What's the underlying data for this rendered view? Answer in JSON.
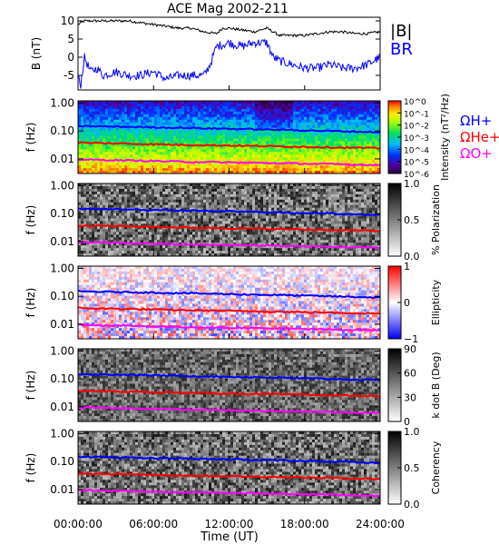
{
  "chart_data": {
    "type": "line",
    "title": "ACE Mag 2002-211",
    "time_axis": {
      "label": "Time (UT)",
      "range_hours": [
        0,
        24
      ],
      "tick_labels": [
        "00:00:00",
        "06:00:00",
        "12:00:00",
        "18:00:00",
        "24:00:00"
      ]
    },
    "panels": [
      {
        "id": "b",
        "type": "line",
        "ylabel": "B (nT)",
        "ylim": [
          -9,
          11
        ],
        "y_ticks": [
          10,
          5,
          0,
          -5
        ],
        "series": [
          {
            "name": "|B|",
            "color": "#000000",
            "x": [
              0,
              0.5,
              1,
              2,
              3,
              4,
              5,
              6,
              7,
              8,
              9,
              10,
              11,
              11.5,
              12,
              13,
              14,
              15,
              15.5,
              16,
              17,
              18,
              19,
              20,
              21,
              22,
              23,
              24
            ],
            "values": [
              9,
              10,
              10,
              10,
              10,
              10,
              9.5,
              9,
              8.5,
              8,
              8,
              7,
              6.5,
              8,
              8,
              7.5,
              7,
              8,
              7,
              6,
              6,
              6,
              6.5,
              7,
              7,
              6.5,
              6.5,
              7
            ]
          },
          {
            "name": "BR",
            "color": "#0000ff",
            "x": [
              0,
              0.2,
              0.5,
              1,
              1.5,
              2,
              3,
              4,
              5,
              6,
              7,
              8,
              9,
              10,
              10.5,
              11,
              12,
              13,
              14,
              15,
              15.5,
              16,
              17,
              18,
              19,
              20,
              21,
              22,
              23,
              24
            ],
            "values": [
              -5,
              -8,
              0,
              -4,
              -3,
              -5,
              -4,
              -5,
              -5,
              -4,
              -6,
              -5,
              -5,
              -5,
              -2,
              3,
              4,
              3,
              4,
              4,
              0,
              -1,
              -2,
              -3,
              -3,
              -2,
              -3,
              -3,
              -2,
              0
            ]
          }
        ]
      },
      {
        "id": "intensity",
        "type": "heatmap",
        "ylabel": "f (Hz)",
        "yscale": "log",
        "ylim": [
          0.003,
          1.2
        ],
        "y_tick_labels": [
          "1.00",
          "0.10",
          "0.01"
        ],
        "colorbar": {
          "label": "Intensity (nT²/Hz)",
          "scale": "log",
          "range": [
            1e-06,
            1
          ],
          "tick_labels": [
            "10^0",
            "10^-1",
            "10^-2",
            "10^-3",
            "10^-4",
            "10^-5",
            "10^-6"
          ]
        },
        "gyrofrequency_lines": [
          {
            "name": "ΩH+",
            "color": "#0000ff",
            "values": [
              0.15,
              0.14,
              0.13,
              0.12,
              0.11,
              0.1,
              0.09
            ]
          },
          {
            "name": "ΩHe+",
            "color": "#ff0000",
            "values": [
              0.038,
              0.035,
              0.032,
              0.03,
              0.028,
              0.026,
              0.024
            ]
          },
          {
            "name": "ΩO+",
            "color": "#ff00ff",
            "values": [
              0.0095,
              0.0088,
              0.008,
              0.0075,
              0.007,
              0.0065,
              0.006
            ]
          }
        ]
      },
      {
        "id": "polarization",
        "type": "heatmap",
        "ylabel": "f (Hz)",
        "yscale": "log",
        "ylim": [
          0.003,
          1.2
        ],
        "y_tick_labels": [
          "1.00",
          "0.10",
          "0.01"
        ],
        "colorbar": {
          "label": "% Polarization",
          "range": [
            0,
            1
          ],
          "tick_labels": [
            "1.0",
            "0.5",
            "0.0"
          ]
        }
      },
      {
        "id": "ellipticity",
        "type": "heatmap",
        "ylabel": "f (Hz)",
        "yscale": "log",
        "ylim": [
          0.003,
          1.2
        ],
        "y_tick_labels": [
          "1.00",
          "0.10",
          "0.01"
        ],
        "colorbar": {
          "label": "Ellipticity",
          "range": [
            -1,
            1
          ],
          "tick_labels": [
            "1",
            "0",
            "−1"
          ]
        }
      },
      {
        "id": "kdotb",
        "type": "heatmap",
        "ylabel": "f (Hz)",
        "yscale": "log",
        "ylim": [
          0.003,
          1.2
        ],
        "y_tick_labels": [
          "1.00",
          "0.10",
          "0.01"
        ],
        "colorbar": {
          "label": "k dot B (Deg)",
          "range": [
            0,
            90
          ],
          "tick_labels": [
            "90",
            "60",
            "30",
            "0"
          ]
        }
      },
      {
        "id": "coherency",
        "type": "heatmap",
        "ylabel": "f (Hz)",
        "yscale": "log",
        "ylim": [
          0.003,
          1.2
        ],
        "y_tick_labels": [
          "1.00",
          "0.10",
          "0.01"
        ],
        "colorbar": {
          "label": "Coherency",
          "range": [
            0,
            1
          ],
          "tick_labels": [
            "1.0",
            "0.5",
            "0.0"
          ]
        }
      }
    ],
    "legend": {
      "b": [
        "|B|",
        "BR"
      ],
      "intensity": [
        "ΩH+",
        "ΩHe+",
        "ΩO+"
      ]
    }
  }
}
